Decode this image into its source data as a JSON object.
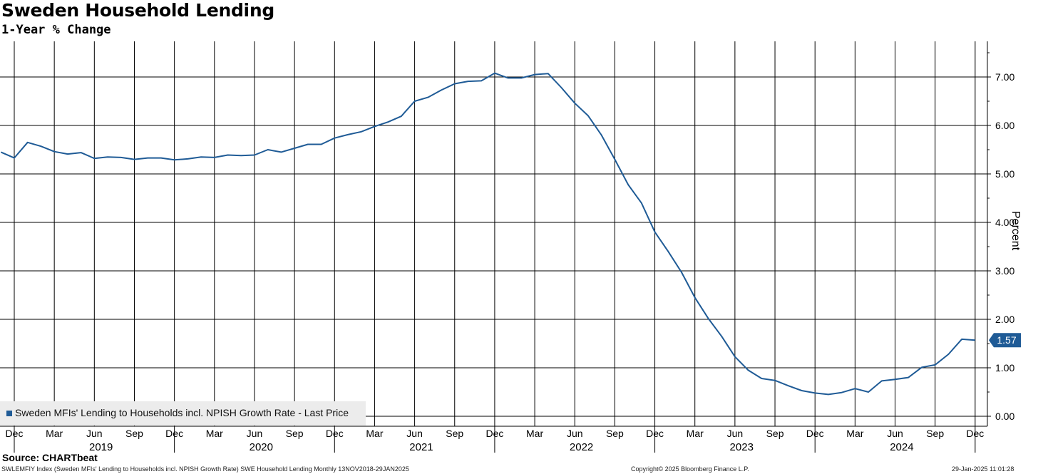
{
  "chart_data": {
    "type": "line",
    "title": "Sweden Household Lending",
    "subtitle": "1-Year % Change",
    "ylabel": "Percent",
    "ylim": [
      -0.3,
      7.7
    ],
    "yticks": [
      0,
      1,
      2,
      3,
      4,
      5,
      6,
      7
    ],
    "ytick_labels": [
      "0.00",
      "1.00",
      "2.00",
      "3.00",
      "4.00",
      "5.00",
      "6.00",
      "7.00"
    ],
    "grid": true,
    "x_month_labels": [
      "Dec",
      "Mar",
      "Jun",
      "Sep",
      "Dec",
      "Mar",
      "Jun",
      "Sep",
      "Dec",
      "Mar",
      "Jun",
      "Sep",
      "Dec",
      "Mar",
      "Jun",
      "Sep",
      "Dec",
      "Mar",
      "Jun",
      "Sep",
      "Dec",
      "Mar",
      "Jun",
      "Sep",
      "Dec"
    ],
    "x_year_labels": [
      "2019",
      "2020",
      "2021",
      "2022",
      "2023",
      "2024"
    ],
    "series": [
      {
        "name": "Sweden MFIs' Lending to Households incl. NPISH Growth Rate - Last Price",
        "color": "#1f5b96",
        "x": [
          "2018-11",
          "2018-12",
          "2019-01",
          "2019-02",
          "2019-03",
          "2019-04",
          "2019-05",
          "2019-06",
          "2019-07",
          "2019-08",
          "2019-09",
          "2019-10",
          "2019-11",
          "2019-12",
          "2020-01",
          "2020-02",
          "2020-03",
          "2020-04",
          "2020-05",
          "2020-06",
          "2020-07",
          "2020-08",
          "2020-09",
          "2020-10",
          "2020-11",
          "2020-12",
          "2021-01",
          "2021-02",
          "2021-03",
          "2021-04",
          "2021-05",
          "2021-06",
          "2021-07",
          "2021-08",
          "2021-09",
          "2021-10",
          "2021-11",
          "2021-12",
          "2022-01",
          "2022-02",
          "2022-03",
          "2022-04",
          "2022-05",
          "2022-06",
          "2022-07",
          "2022-08",
          "2022-09",
          "2022-10",
          "2022-11",
          "2022-12",
          "2023-01",
          "2023-02",
          "2023-03",
          "2023-04",
          "2023-05",
          "2023-06",
          "2023-07",
          "2023-08",
          "2023-09",
          "2023-10",
          "2023-11",
          "2023-12",
          "2024-01",
          "2024-02",
          "2024-03",
          "2024-04",
          "2024-05",
          "2024-06",
          "2024-07",
          "2024-08",
          "2024-09",
          "2024-10",
          "2024-11",
          "2024-12"
        ],
        "values": [
          5.45,
          5.33,
          5.65,
          5.57,
          5.46,
          5.41,
          5.44,
          5.32,
          5.35,
          5.34,
          5.3,
          5.33,
          5.33,
          5.29,
          5.31,
          5.35,
          5.34,
          5.39,
          5.38,
          5.39,
          5.5,
          5.45,
          5.53,
          5.61,
          5.61,
          5.74,
          5.81,
          5.87,
          5.98,
          6.07,
          6.19,
          6.5,
          6.58,
          6.73,
          6.86,
          6.91,
          6.92,
          7.08,
          6.98,
          6.98,
          7.05,
          7.07,
          6.78,
          6.46,
          6.2,
          5.8,
          5.3,
          4.78,
          4.4,
          3.8,
          3.4,
          2.97,
          2.45,
          2.02,
          1.65,
          1.23,
          0.95,
          0.78,
          0.74,
          0.63,
          0.53,
          0.48,
          0.45,
          0.49,
          0.57,
          0.5,
          0.73,
          0.76,
          0.8,
          1.01,
          1.06,
          1.28,
          1.59,
          1.57
        ]
      }
    ],
    "last_value_label": "1.57",
    "legend_placement": "bottom-left"
  },
  "source": "Source: CHARTbeat",
  "footer": {
    "left": "SWLEMFIY Index (Sweden MFIs' Lending to Households incl. NPISH Growth Rate) SWE Household Lending  Monthly 13NOV2018-29JAN2025",
    "center": "Copyright© 2025 Bloomberg Finance L.P.",
    "right": "29-Jan-2025 11:01:28"
  },
  "colors": {
    "line": "#1f5b96",
    "grid": "#000000",
    "legend_bg": "#ececec",
    "badge": "#1f5b96"
  }
}
